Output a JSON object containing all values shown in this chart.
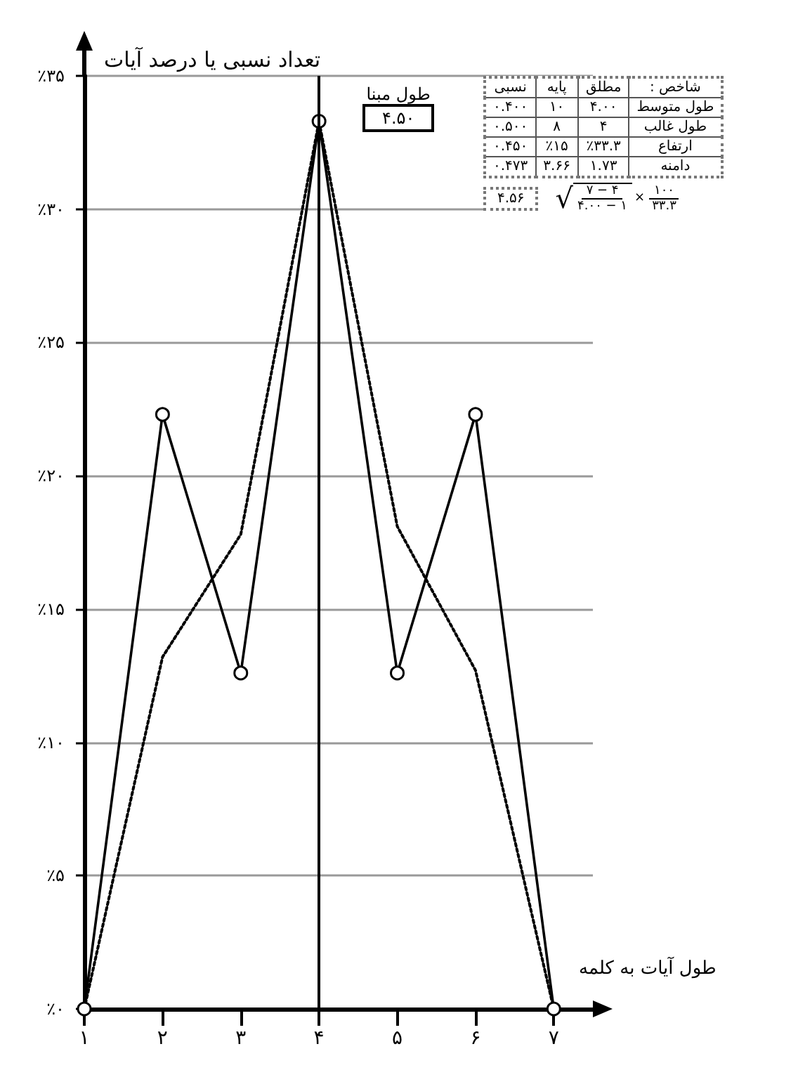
{
  "chart_data": {
    "type": "line",
    "ylabel": "تعداد نسبی یا درصد آیات",
    "xlabel": "طول آیات به کلمه",
    "x": [
      1,
      2,
      3,
      4,
      5,
      6,
      7
    ],
    "series": [
      {
        "color": "#000000",
        "values": [
          0,
          22.3,
          12.6,
          33.3,
          12.6,
          22.3,
          0
        ],
        "marker": "circle",
        "line_style": "solid"
      },
      {
        "color": "#000000",
        "values": [
          0,
          13.2,
          17.8,
          33.3,
          18.1,
          12.7,
          0
        ],
        "marker": "none",
        "line_style": "dotted"
      }
    ],
    "xlim": [
      1,
      7.5
    ],
    "xticks": [
      {
        "value": 1,
        "label": "۱"
      },
      {
        "value": 2,
        "label": "۲"
      },
      {
        "value": 3,
        "label": "۳"
      },
      {
        "value": 4,
        "label": "۴"
      },
      {
        "value": 5,
        "label": "۵"
      },
      {
        "value": 6,
        "label": "۶"
      },
      {
        "value": 7,
        "label": "۷"
      }
    ],
    "ylim": [
      0,
      35
    ],
    "yticks": [
      {
        "value": 0,
        "label": "٪۰"
      },
      {
        "value": 5,
        "label": "٪۵"
      },
      {
        "value": 10,
        "label": "٪۱۰"
      },
      {
        "value": 15,
        "label": "٪۱۵"
      },
      {
        "value": 20,
        "label": "٪۲۰"
      },
      {
        "value": 25,
        "label": "٪۲۵"
      },
      {
        "value": 30,
        "label": "٪۳۰"
      },
      {
        "value": 35,
        "label": "٪۳۵"
      }
    ],
    "grid": "y",
    "ref_lines": [
      {
        "axis": "x",
        "value": 4,
        "color": "#000000",
        "line_style": "solid"
      }
    ],
    "annotations": [
      "طول مبنا",
      "۴.۵۰",
      "شاخص :",
      "مطلق",
      "پایه",
      "نسبی",
      "طول متوسط",
      "۴.۰۰",
      "۱۰",
      "۰.۴۰۰",
      "طول غالب",
      "۴",
      "۸",
      "۰.۵۰۰",
      "ارتفاع",
      "٪۳۳.۳",
      "٪۱۵",
      "۰.۴۵۰",
      "دامنه",
      "۱.۷۳",
      "۳.۶۶",
      "۰.۴۷۳",
      "۴.۵۶",
      "√",
      "۷ − ۴",
      "۴.۰۰ − ۱",
      "×",
      "۱۰۰",
      "۳۳.۳"
    ]
  }
}
